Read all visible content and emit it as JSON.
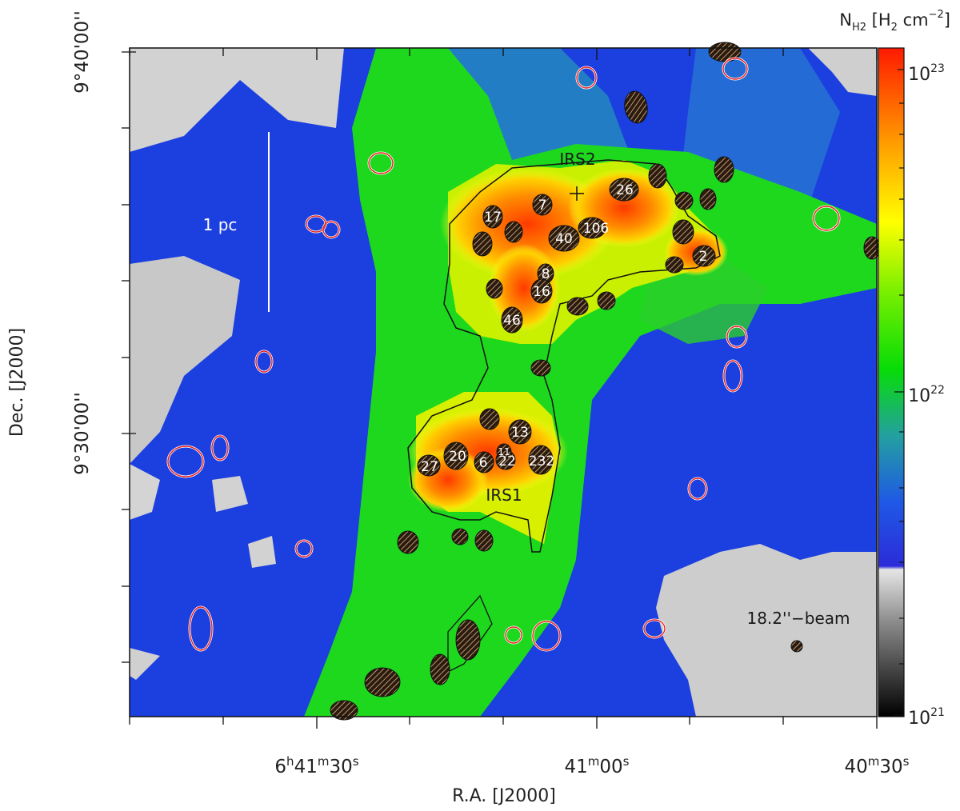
{
  "chart_data": {
    "type": "heatmap",
    "xlabel": "R.A. [J2000]",
    "ylabel": "Dec. [J2000]",
    "colorbar_label_parts": {
      "n": "N",
      "sub": "H2",
      "unit": "[H",
      "unit_sub": "2",
      "unit_rest": " cm",
      "exp": "−2",
      "close": "]"
    },
    "x_ticks": [
      {
        "value_s": 30,
        "h": "6",
        "m": "41",
        "s": "30"
      },
      {
        "value_s": 0,
        "h": "",
        "m": "41",
        "s": "00"
      },
      {
        "value_s": -30,
        "h": "",
        "m": "40",
        "s": "30"
      }
    ],
    "y_ticks": [
      {
        "value_arcmin": 40,
        "label": "9°40'00''"
      },
      {
        "value_arcmin": 30,
        "label": "9°30'00''"
      }
    ],
    "colorbar": {
      "scale": "log",
      "range": [
        1e+21,
        1.3e+23
      ],
      "ticks": [
        {
          "value": 1e+23,
          "base": "10",
          "exp": "23"
        },
        {
          "value": 1e+22,
          "base": "10",
          "exp": "22"
        },
        {
          "value": 1e+21,
          "base": "10",
          "exp": "21"
        }
      ],
      "colors": [
        "#000000",
        "#d8d8d8",
        "#2f3fd8",
        "#1e6fe8",
        "#2ea8a0",
        "#00e600",
        "#9ef000",
        "#ffff00",
        "#ff9a00",
        "#ff2a00"
      ]
    },
    "annotations": {
      "scale_bar": "1 pc",
      "beam": "18.2''−beam",
      "regions": [
        "IRS2",
        "IRS1"
      ]
    },
    "source_labels": [
      "17",
      "7",
      "26",
      "40",
      "106",
      "8",
      "16",
      "46",
      "2",
      "13",
      "20",
      "6",
      "22",
      "232",
      "27",
      "11"
    ]
  }
}
